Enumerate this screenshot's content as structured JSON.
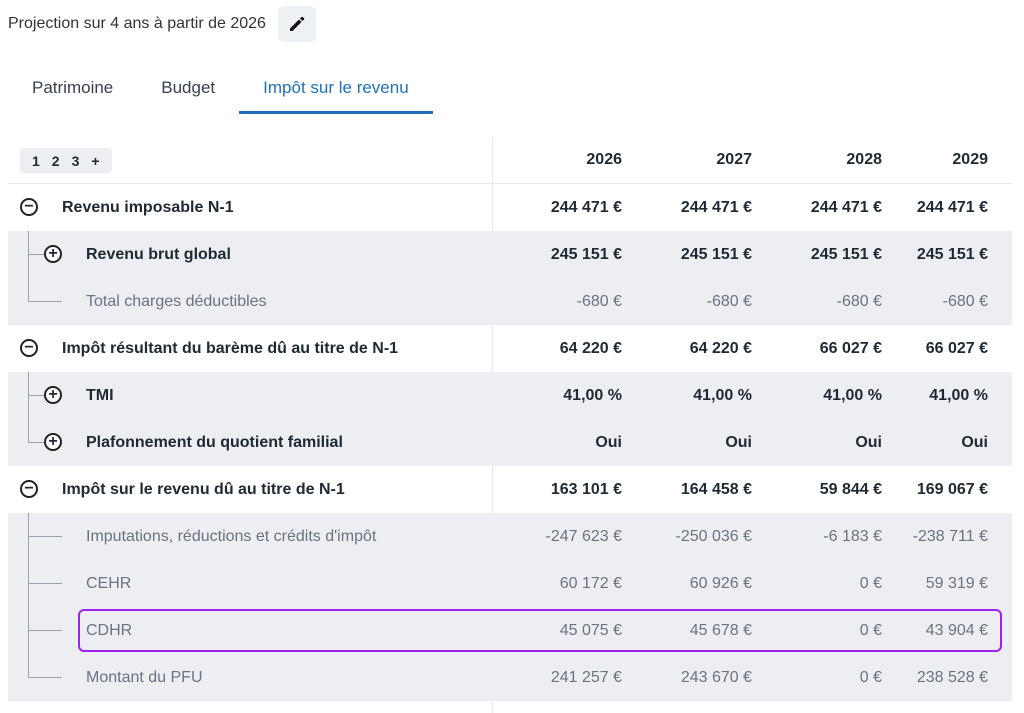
{
  "header": {
    "title": "Projection sur 4 ans à partir de 2026",
    "edit_icon": "pencil-icon"
  },
  "tabs": [
    {
      "label": "Patrimoine",
      "active": false
    },
    {
      "label": "Budget",
      "active": false
    },
    {
      "label": "Impôt sur le revenu",
      "active": true
    }
  ],
  "table": {
    "levels": [
      "1",
      "2",
      "3",
      "+"
    ],
    "years": [
      "2026",
      "2027",
      "2028",
      "2029"
    ],
    "rows": [
      {
        "label": "Revenu imposable N-1",
        "values": [
          "244 471 €",
          "244 471 €",
          "244 471 €",
          "244 471 €"
        ]
      },
      {
        "label": "Revenu brut global",
        "values": [
          "245 151 €",
          "245 151 €",
          "245 151 €",
          "245 151 €"
        ]
      },
      {
        "label": "Total charges déductibles",
        "values": [
          "-680 €",
          "-680 €",
          "-680 €",
          "-680 €"
        ]
      },
      {
        "label": "Impôt résultant du barème dû au titre de N-1",
        "values": [
          "64 220 €",
          "64 220 €",
          "66 027 €",
          "66 027 €"
        ]
      },
      {
        "label": "TMI",
        "values": [
          "41,00 %",
          "41,00 %",
          "41,00 %",
          "41,00 %"
        ]
      },
      {
        "label": "Plafonnement du quotient familial",
        "values": [
          "Oui",
          "Oui",
          "Oui",
          "Oui"
        ]
      },
      {
        "label": "Impôt sur le revenu dû au titre de N-1",
        "values": [
          "163 101 €",
          "164 458 €",
          "59 844 €",
          "169 067 €"
        ]
      },
      {
        "label": "Imputations, réductions et crédits d'impôt",
        "values": [
          "-247 623 €",
          "-250 036 €",
          "-6 183 €",
          "-238 711 €"
        ]
      },
      {
        "label": "CEHR",
        "values": [
          "60 172 €",
          "60 926 €",
          "0 €",
          "59 319 €"
        ]
      },
      {
        "label": "CDHR",
        "values": [
          "45 075 €",
          "45 678 €",
          "0 €",
          "43 904 €"
        ]
      },
      {
        "label": "Montant du PFU",
        "values": [
          "241 257 €",
          "243 670 €",
          "0 €",
          "238 528 €"
        ]
      }
    ]
  },
  "colors": {
    "accent": "#1f70b8",
    "highlight": "#a020f0",
    "row_alt": "#eceef1"
  }
}
